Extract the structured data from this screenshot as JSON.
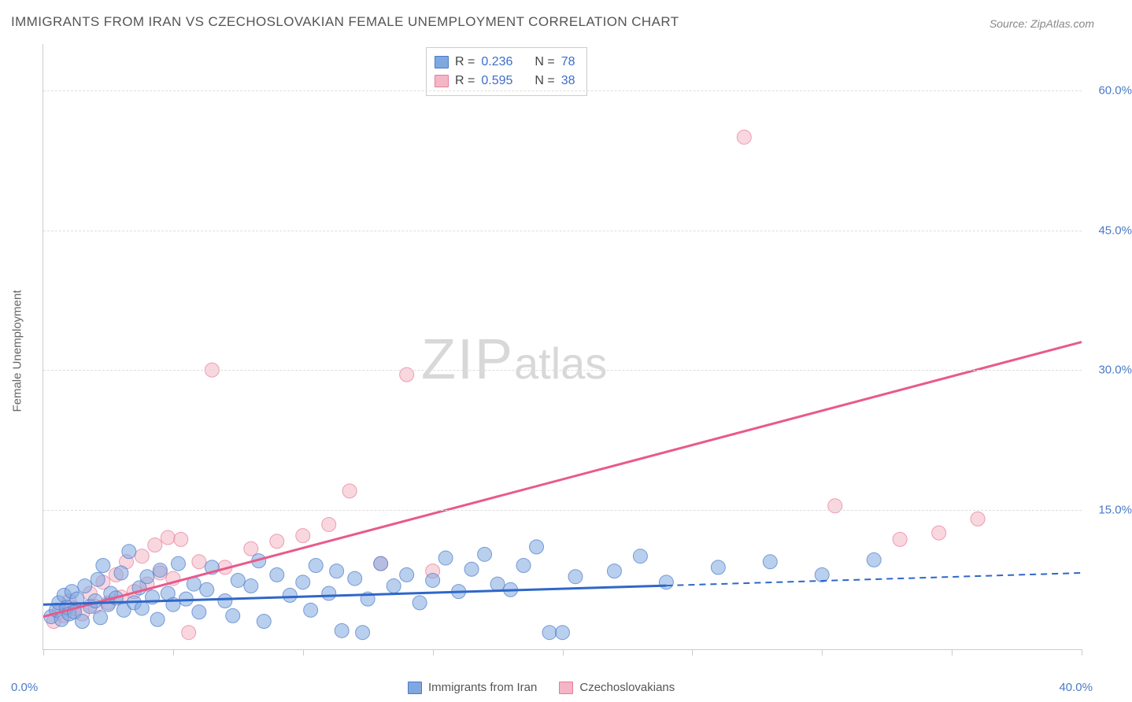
{
  "title": "IMMIGRANTS FROM IRAN VS CZECHOSLOVAKIAN FEMALE UNEMPLOYMENT CORRELATION CHART",
  "source": "Source: ZipAtlas.com",
  "watermark": {
    "zip": "ZIP",
    "atlas": "atlas"
  },
  "y_axis_title": "Female Unemployment",
  "x_label_min": "0.0%",
  "x_label_max": "40.0%",
  "chart": {
    "type": "scatter",
    "xlim": [
      0,
      40
    ],
    "ylim": [
      0,
      65
    ],
    "x_tick_step": 5,
    "y_ticks": [
      15,
      30,
      45,
      60
    ],
    "y_tick_labels": [
      "15.0%",
      "30.0%",
      "45.0%",
      "60.0%"
    ],
    "grid_color": "#dddddd",
    "axis_color": "#cccccc",
    "background_color": "#ffffff",
    "marker_radius": 9,
    "marker_opacity": 0.55,
    "series": {
      "iran": {
        "label": "Immigrants from Iran",
        "fill": "#7fa8e0",
        "stroke": "#4a7ac7",
        "trend_color": "#2f67c9",
        "trend_width": 3,
        "trend_solid_to_x": 24,
        "trend_y_at_0": 4.8,
        "trend_y_at_40": 8.2,
        "R": "0.236",
        "N": "78",
        "points": [
          [
            0.3,
            3.5
          ],
          [
            0.5,
            4.2
          ],
          [
            0.6,
            5.0
          ],
          [
            0.7,
            3.2
          ],
          [
            0.8,
            5.8
          ],
          [
            0.9,
            4.5
          ],
          [
            1.0,
            3.8
          ],
          [
            1.1,
            6.2
          ],
          [
            1.2,
            4.0
          ],
          [
            1.3,
            5.4
          ],
          [
            1.5,
            3.0
          ],
          [
            1.6,
            6.8
          ],
          [
            1.8,
            4.6
          ],
          [
            2.0,
            5.2
          ],
          [
            2.1,
            7.5
          ],
          [
            2.2,
            3.4
          ],
          [
            2.3,
            9.0
          ],
          [
            2.5,
            4.8
          ],
          [
            2.6,
            6.0
          ],
          [
            2.8,
            5.5
          ],
          [
            3.0,
            8.2
          ],
          [
            3.1,
            4.2
          ],
          [
            3.3,
            10.5
          ],
          [
            3.5,
            5.0
          ],
          [
            3.7,
            6.6
          ],
          [
            3.8,
            4.4
          ],
          [
            4.0,
            7.8
          ],
          [
            4.2,
            5.6
          ],
          [
            4.4,
            3.2
          ],
          [
            4.5,
            8.5
          ],
          [
            4.8,
            6.0
          ],
          [
            5.0,
            4.8
          ],
          [
            5.2,
            9.2
          ],
          [
            5.5,
            5.4
          ],
          [
            5.8,
            7.0
          ],
          [
            6.0,
            4.0
          ],
          [
            6.3,
            6.4
          ],
          [
            6.5,
            8.8
          ],
          [
            7.0,
            5.2
          ],
          [
            7.3,
            3.6
          ],
          [
            7.5,
            7.4
          ],
          [
            8.0,
            6.8
          ],
          [
            8.3,
            9.5
          ],
          [
            8.5,
            3.0
          ],
          [
            9.0,
            8.0
          ],
          [
            9.5,
            5.8
          ],
          [
            10.0,
            7.2
          ],
          [
            10.3,
            4.2
          ],
          [
            10.5,
            9.0
          ],
          [
            11.0,
            6.0
          ],
          [
            11.3,
            8.4
          ],
          [
            11.5,
            2.0
          ],
          [
            12.0,
            7.6
          ],
          [
            12.3,
            1.8
          ],
          [
            12.5,
            5.4
          ],
          [
            13.0,
            9.2
          ],
          [
            13.5,
            6.8
          ],
          [
            14.0,
            8.0
          ],
          [
            14.5,
            5.0
          ],
          [
            15.0,
            7.4
          ],
          [
            15.5,
            9.8
          ],
          [
            16.0,
            6.2
          ],
          [
            16.5,
            8.6
          ],
          [
            17.0,
            10.2
          ],
          [
            17.5,
            7.0
          ],
          [
            18.0,
            6.4
          ],
          [
            18.5,
            9.0
          ],
          [
            19.0,
            11.0
          ],
          [
            19.5,
            1.8
          ],
          [
            20.0,
            1.8
          ],
          [
            20.5,
            7.8
          ],
          [
            22.0,
            8.4
          ],
          [
            23.0,
            10.0
          ],
          [
            24.0,
            7.2
          ],
          [
            26.0,
            8.8
          ],
          [
            28.0,
            9.4
          ],
          [
            30.0,
            8.0
          ],
          [
            32.0,
            9.6
          ]
        ]
      },
      "czech": {
        "label": "Czechoslovakians",
        "fill": "#f4b6c5",
        "stroke": "#e77b9a",
        "trend_color": "#e85a8a",
        "trend_width": 3,
        "trend_y_at_0": 3.5,
        "trend_y_at_40": 33.0,
        "R": "0.595",
        "N": "38",
        "points": [
          [
            0.4,
            3.0
          ],
          [
            0.6,
            4.0
          ],
          [
            0.8,
            3.6
          ],
          [
            1.0,
            5.2
          ],
          [
            1.2,
            4.4
          ],
          [
            1.5,
            3.8
          ],
          [
            1.8,
            6.0
          ],
          [
            2.0,
            4.6
          ],
          [
            2.3,
            7.2
          ],
          [
            2.5,
            5.0
          ],
          [
            2.8,
            8.0
          ],
          [
            3.0,
            5.6
          ],
          [
            3.2,
            9.4
          ],
          [
            3.5,
            6.2
          ],
          [
            3.8,
            10.0
          ],
          [
            4.0,
            7.0
          ],
          [
            4.3,
            11.2
          ],
          [
            4.5,
            8.2
          ],
          [
            4.8,
            12.0
          ],
          [
            5.0,
            7.6
          ],
          [
            5.3,
            11.8
          ],
          [
            5.6,
            1.8
          ],
          [
            6.0,
            9.4
          ],
          [
            6.5,
            30.0
          ],
          [
            7.0,
            8.8
          ],
          [
            8.0,
            10.8
          ],
          [
            9.0,
            11.6
          ],
          [
            10.0,
            12.2
          ],
          [
            11.0,
            13.4
          ],
          [
            11.8,
            17.0
          ],
          [
            13.0,
            9.2
          ],
          [
            14.0,
            29.5
          ],
          [
            15.0,
            8.4
          ],
          [
            27.0,
            55.0
          ],
          [
            30.5,
            15.4
          ],
          [
            33.0,
            11.8
          ],
          [
            34.5,
            12.5
          ],
          [
            36.0,
            14.0
          ]
        ]
      }
    }
  },
  "legend_top": {
    "r_label": "R =",
    "n_label": "N ="
  }
}
